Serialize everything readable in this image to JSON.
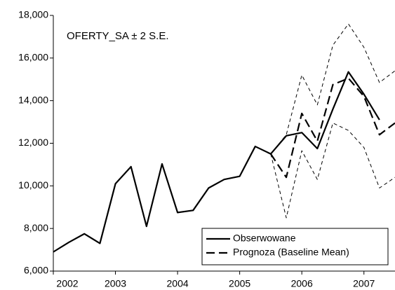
{
  "chart_data": {
    "type": "line",
    "annotation": "OFERTY_SA ± 2 S.E.",
    "x": [
      2002.0,
      2002.25,
      2002.5,
      2002.75,
      2003.0,
      2003.25,
      2003.5,
      2003.75,
      2004.0,
      2004.25,
      2004.5,
      2004.75,
      2005.0,
      2005.25,
      2005.5,
      2005.75,
      2006.0,
      2006.25,
      2006.5,
      2006.75,
      2007.0,
      2007.25,
      2007.5
    ],
    "xlim": [
      2002.0,
      2007.5
    ],
    "xticks": [
      2002,
      2003,
      2004,
      2005,
      2006,
      2007
    ],
    "ylim": [
      6000,
      18000
    ],
    "yticks": [
      {
        "value": 6000,
        "label": "6,000"
      },
      {
        "value": 8000,
        "label": "8,000"
      },
      {
        "value": 10000,
        "label": "10,000"
      },
      {
        "value": 12000,
        "label": "12,000"
      },
      {
        "value": 14000,
        "label": "14,000"
      },
      {
        "value": 16000,
        "label": "16,000"
      },
      {
        "value": 18000,
        "label": "18,000"
      }
    ],
    "legend": "lower right",
    "series": [
      {
        "name": "Obserwowane",
        "color": "#000000",
        "style": "solid",
        "values": [
          6900,
          7350,
          7750,
          7300,
          10100,
          10900,
          8100,
          11030,
          8750,
          8850,
          9900,
          10300,
          10450,
          11850,
          11500,
          12350,
          12500,
          11750,
          13600,
          15350,
          14300,
          13100,
          null
        ]
      },
      {
        "name": "Prognoza (Baseline Mean)",
        "color": "#000000",
        "style": "dashed",
        "values": [
          null,
          null,
          null,
          null,
          null,
          null,
          null,
          null,
          null,
          null,
          null,
          null,
          null,
          null,
          11500,
          10400,
          13400,
          12100,
          14750,
          15050,
          14200,
          12400,
          12950
        ]
      },
      {
        "color": "#000000",
        "style": "dotted",
        "values": [
          null,
          null,
          null,
          null,
          null,
          null,
          null,
          null,
          null,
          null,
          null,
          null,
          null,
          null,
          11500,
          12400,
          15200,
          13800,
          16600,
          17600,
          16500,
          14850,
          15400
        ]
      },
      {
        "color": "#000000",
        "style": "dotted",
        "values": [
          null,
          null,
          null,
          null,
          null,
          null,
          null,
          null,
          null,
          null,
          null,
          null,
          null,
          null,
          11500,
          8500,
          11650,
          10300,
          12950,
          12600,
          11800,
          9900,
          10400
        ]
      }
    ]
  }
}
